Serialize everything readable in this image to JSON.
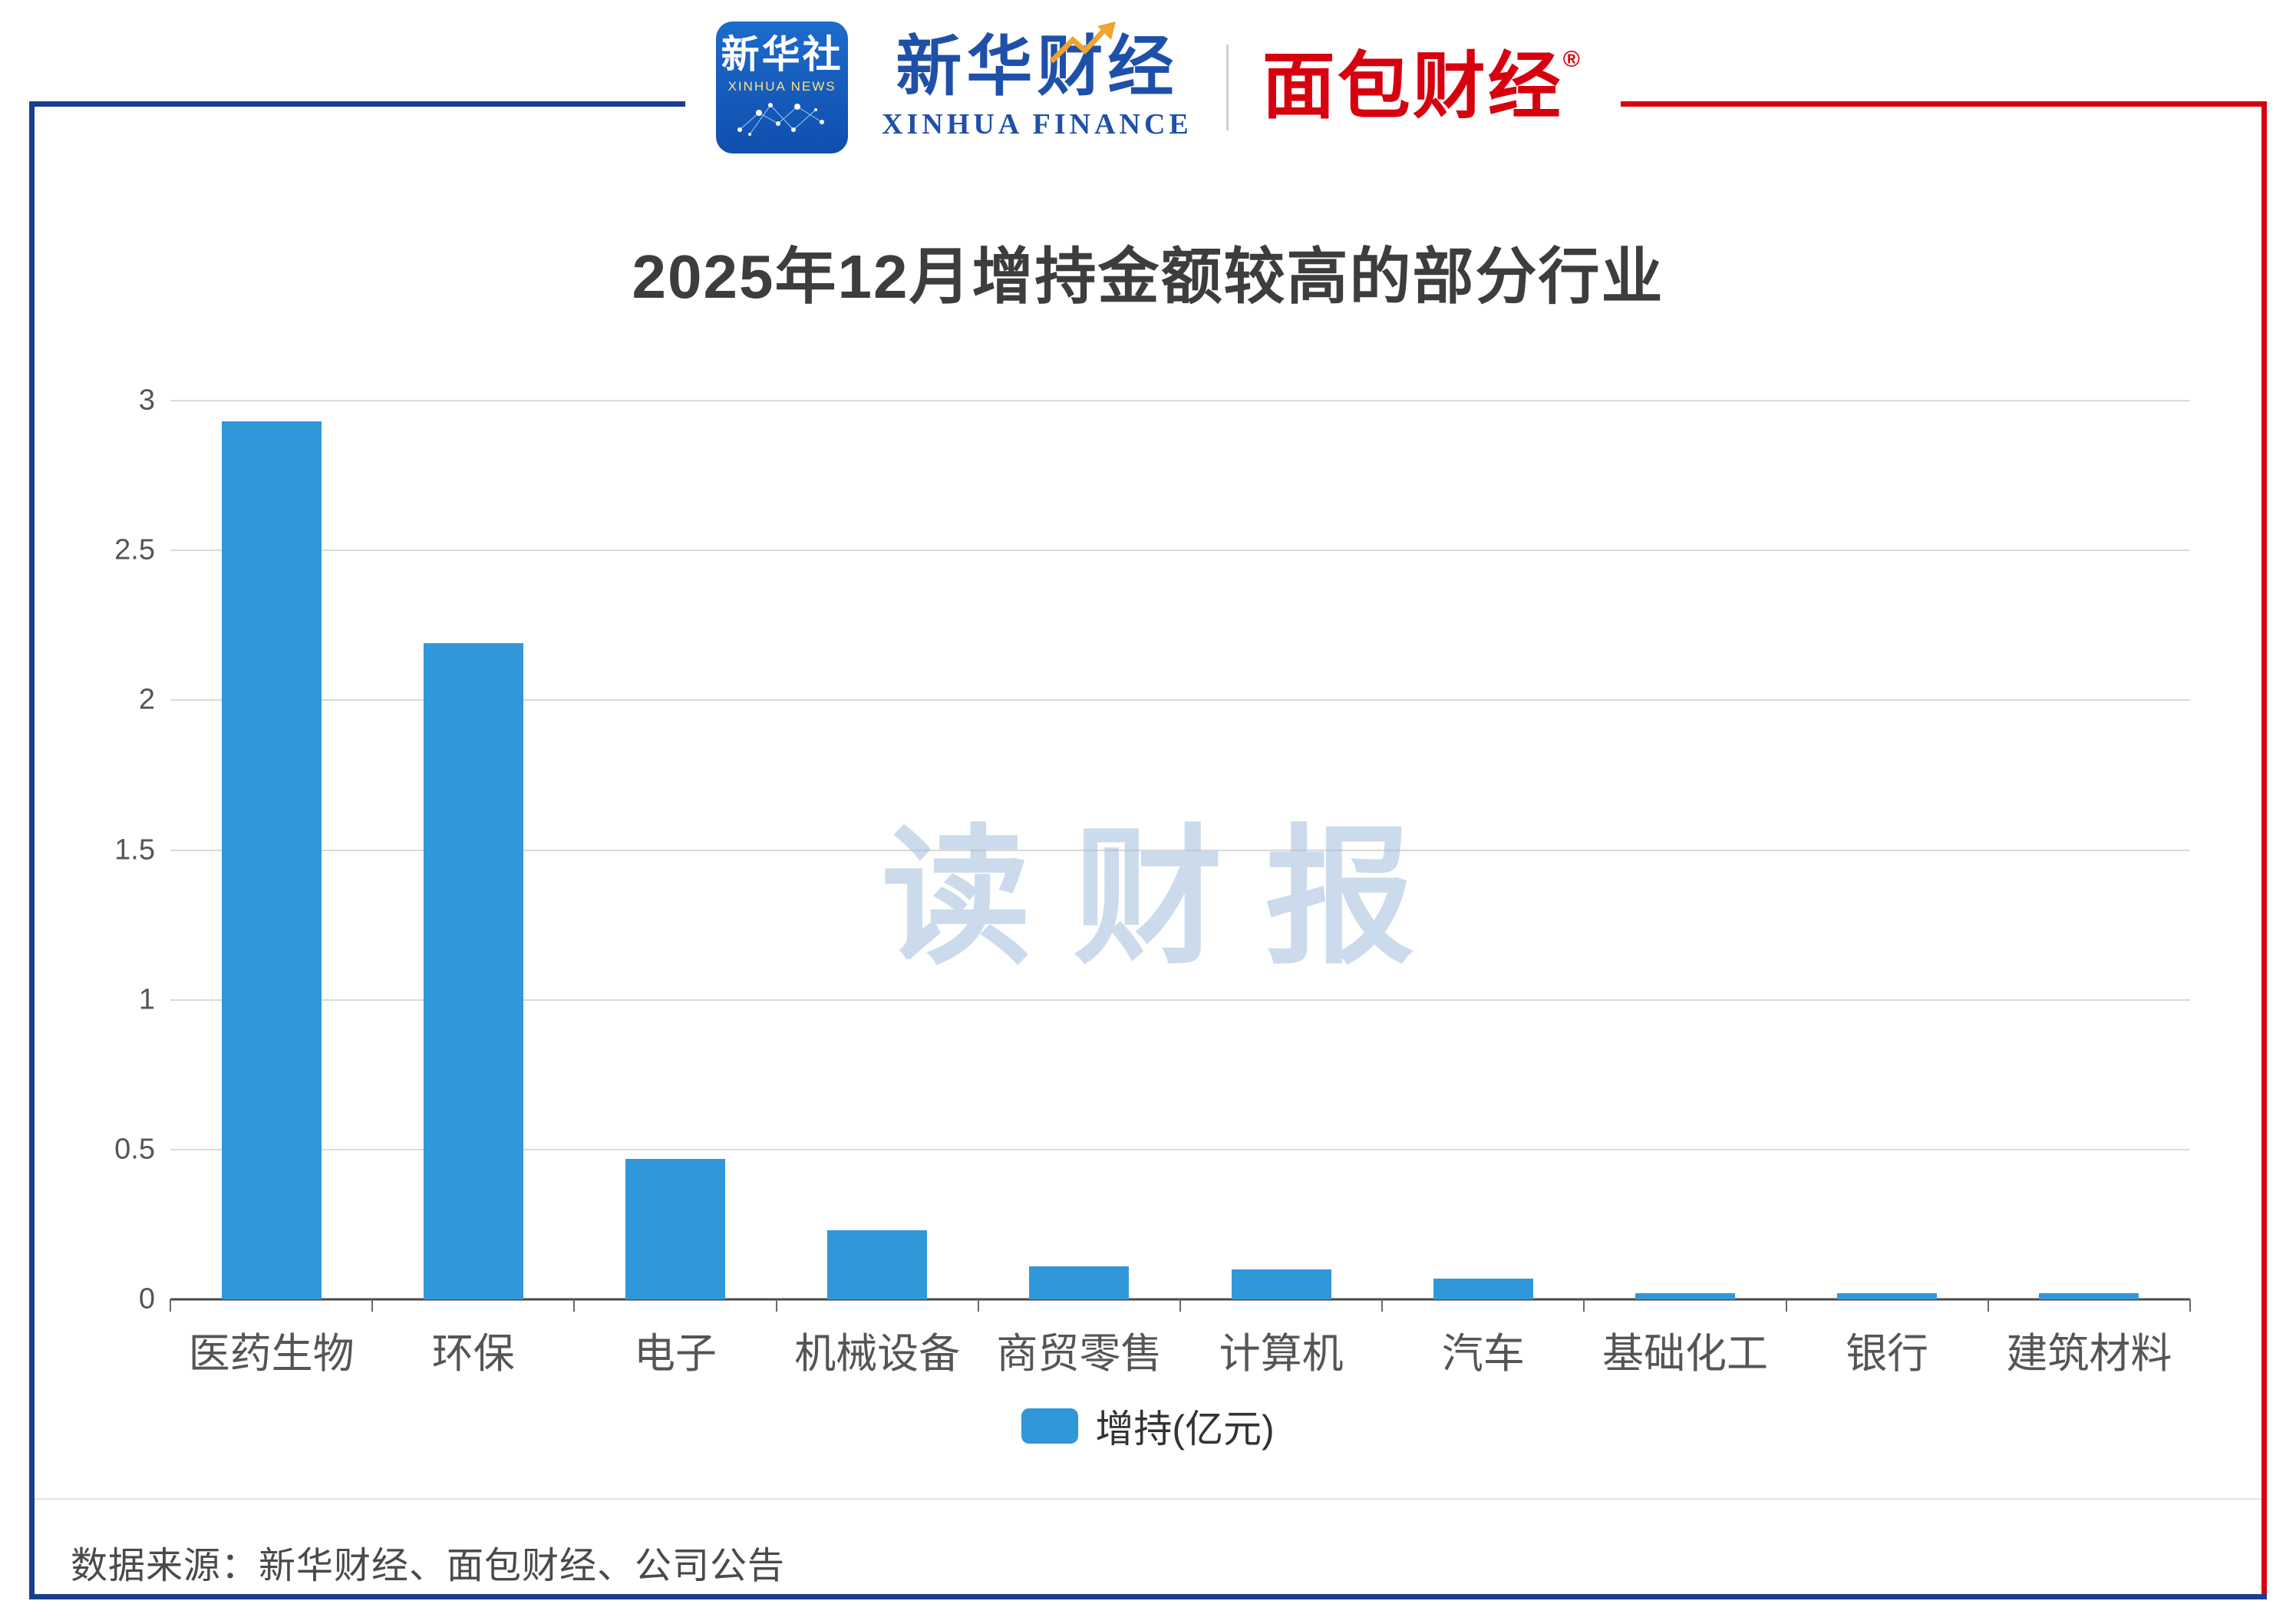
{
  "header": {
    "xinhua_news": {
      "title": "新华社",
      "subtitle": "XINHUA NEWS"
    },
    "xinhua_finance": {
      "title": "新华财经",
      "subtitle": "XINHUA FINANCE"
    },
    "divider": "|",
    "bread_finance": {
      "title": "面包财经",
      "registered": "®"
    }
  },
  "chart_data": {
    "type": "bar",
    "title": "2025年12月增持金额较高的部分行业",
    "categories": [
      "医药生物",
      "环保",
      "电子",
      "机械设备",
      "商贸零售",
      "计算机",
      "汽车",
      "基础化工",
      "银行",
      "建筑材料"
    ],
    "values": [
      2.93,
      2.19,
      0.47,
      0.23,
      0.11,
      0.1,
      0.07,
      0.02,
      0.02,
      0.02
    ],
    "series_name": "增持(亿元)",
    "xlabel": "",
    "ylabel": "",
    "ylim": [
      0,
      3
    ],
    "yticks": [
      0,
      0.5,
      1,
      1.5,
      2,
      2.5,
      3
    ],
    "grid": true,
    "legend_position": "bottom",
    "bar_color": "#3098d8",
    "watermark": "读财报"
  },
  "footer": {
    "source": "数据来源：新华财经、面包财经、公司公告"
  },
  "colors": {
    "frame_blue": "#1b3d91",
    "frame_red": "#d7000f",
    "bar_blue": "#3098d8",
    "grid_gray": "#d9d9d9",
    "axis_gray": "#4a4a4a",
    "watermark_blue": "rgba(151,183,217,0.5)"
  }
}
